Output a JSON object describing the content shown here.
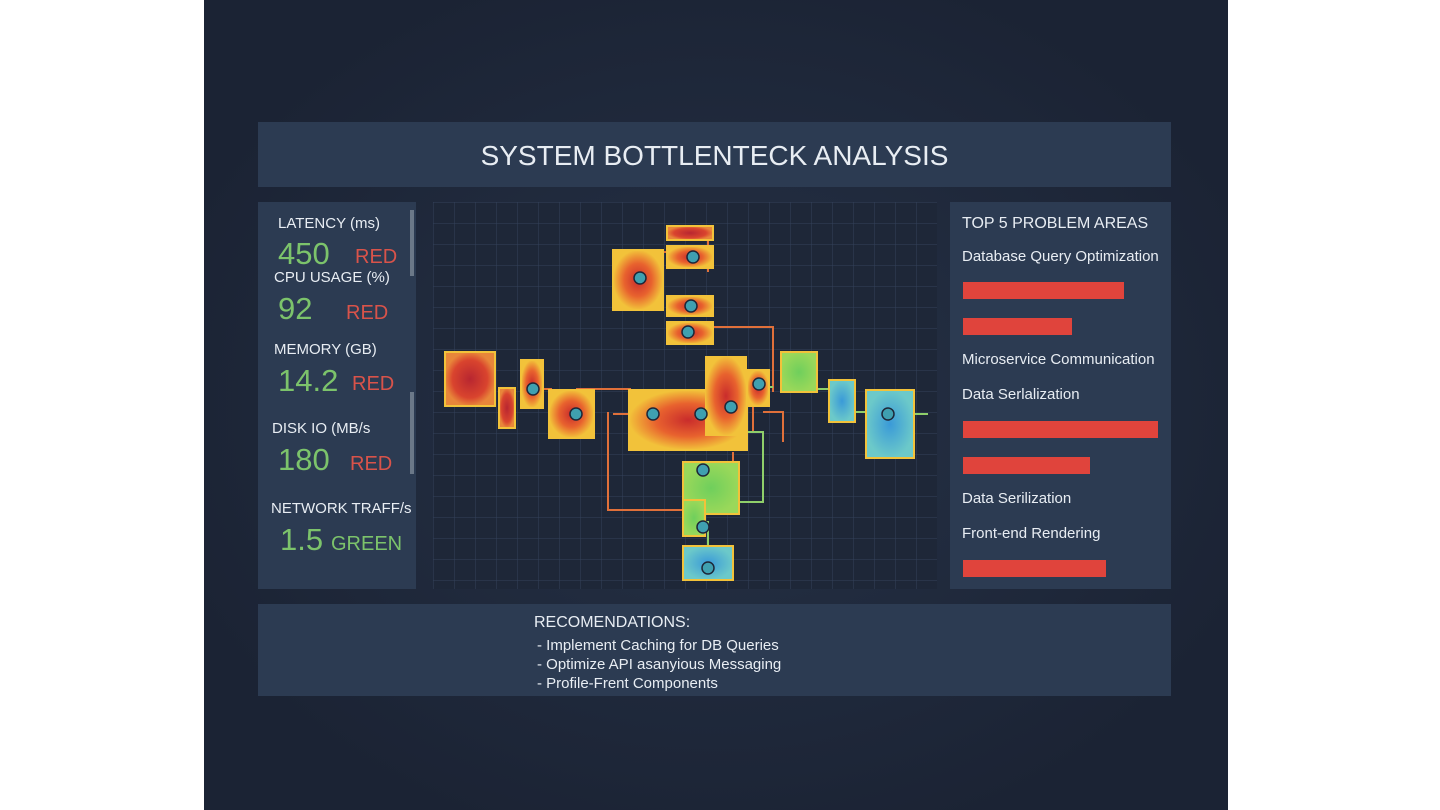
{
  "header": {
    "title": "SYSTEM BOTTLENTECK ANALYSIS"
  },
  "metrics": [
    {
      "label": "LATENCY (ms)",
      "value": "450",
      "status": "RED"
    },
    {
      "label": "CPU USAGE (%)",
      "value": "92",
      "status": "RED"
    },
    {
      "label": "MEMORY (GB)",
      "value": "14.2",
      "status": "RED"
    },
    {
      "label": "DISK IO (MB/s",
      "value": "180",
      "status": "RED"
    },
    {
      "label": "NETWORK TRAFF/s",
      "value": "1.5",
      "status": "GREEN"
    }
  ],
  "problem_areas": {
    "title": "TOP 5 PROBLEM AREAS",
    "items": [
      "Database Query Optimization",
      "Microservice Communication",
      "Data Serlalization",
      "Data Serilization",
      "Front-end Rendering"
    ]
  },
  "recommendations": {
    "title": "RECOMENDATIONS:",
    "items": [
      "- Implement Caching for DB Queries",
      "- Optimize API asanyious Messaging",
      "- Profile-Frent Components"
    ]
  }
}
